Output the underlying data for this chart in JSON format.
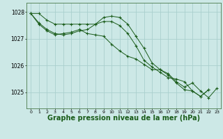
{
  "bg_color": "#cce8e6",
  "grid_color": "#aacfcd",
  "line_color": "#1a5c1a",
  "marker_color": "#1a5c1a",
  "xlabel": "Graphe pression niveau de la mer (hPa)",
  "xlabel_fontsize": 7,
  "ylabel_ticks": [
    1025,
    1026,
    1027,
    1028
  ],
  "xlim": [
    -0.5,
    23.5
  ],
  "ylim": [
    1024.4,
    1028.35
  ],
  "xticks": [
    0,
    1,
    2,
    3,
    4,
    5,
    6,
    7,
    8,
    9,
    10,
    11,
    12,
    13,
    14,
    15,
    16,
    17,
    18,
    19,
    20,
    21,
    22,
    23
  ],
  "series": [
    [
      1027.95,
      1027.95,
      1027.7,
      1027.55,
      1027.55,
      1027.55,
      1027.55,
      1027.55,
      1027.55,
      1027.8,
      1027.85,
      1027.8,
      1027.55,
      1027.1,
      1026.65,
      1026.1,
      1025.85,
      1025.65,
      1025.35,
      1025.1,
      1025.05,
      1024.85,
      1025.1,
      null
    ],
    [
      1027.95,
      1027.6,
      1027.35,
      1027.2,
      1027.15,
      1027.2,
      1027.3,
      1027.35,
      1027.55,
      1027.65,
      1027.65,
      1027.5,
      1027.2,
      1026.75,
      1026.2,
      1025.95,
      1025.75,
      1025.55,
      1025.5,
      1025.4,
      1025.05,
      1024.85,
      1025.1,
      null
    ],
    [
      1027.95,
      1027.55,
      1027.3,
      1027.15,
      1027.2,
      1027.25,
      1027.35,
      1027.2,
      1027.15,
      1027.1,
      1026.8,
      1026.55,
      1026.35,
      1026.25,
      1026.05,
      1025.85,
      1025.85,
      1025.7,
      1025.4,
      1025.2,
      1025.35,
      1025.05,
      1024.8,
      1025.15
    ]
  ]
}
